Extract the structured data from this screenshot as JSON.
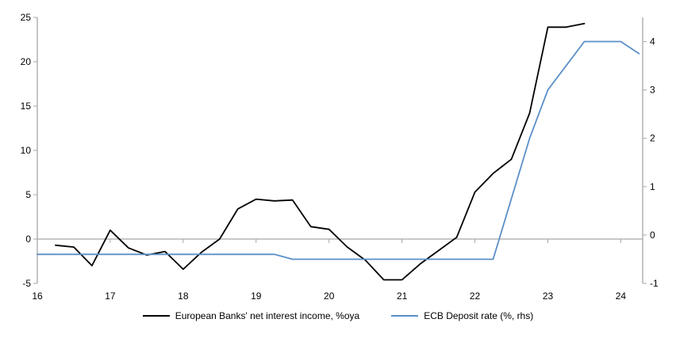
{
  "chart_data": {
    "type": "line",
    "title": "",
    "grid": "zero-line-only",
    "legend_position": "bottom-center",
    "colors": {
      "series1": "#000000",
      "series2": "#5b8fc8",
      "axis": "#a6a6a6"
    },
    "x_axis": {
      "min": 16,
      "max": 24.3,
      "ticks": [
        16,
        17,
        18,
        19,
        20,
        21,
        22,
        23,
        24
      ]
    },
    "left_axis": {
      "min": -5,
      "max": 25,
      "ticks": [
        25,
        20,
        15,
        10,
        5,
        0,
        -5
      ]
    },
    "right_axis": {
      "min": -1,
      "max": 4.5,
      "ticks": [
        4,
        3,
        2,
        1,
        0,
        -1
      ]
    },
    "series": [
      {
        "name": "European Banks' net interest income, %oya",
        "axis": "left",
        "color": "#000000",
        "x": [
          16.25,
          16.5,
          16.75,
          17.0,
          17.25,
          17.5,
          17.75,
          18.0,
          18.25,
          18.5,
          18.75,
          19.0,
          19.25,
          19.5,
          19.75,
          20.0,
          20.25,
          20.5,
          20.75,
          21.0,
          21.25,
          21.5,
          21.75,
          22.0,
          22.25,
          22.5,
          22.75,
          23.0,
          23.25,
          23.5
        ],
        "values": [
          -0.7,
          -0.9,
          -3.0,
          1.0,
          -1.0,
          -1.8,
          -1.4,
          -3.4,
          -1.5,
          0.0,
          3.4,
          4.5,
          4.3,
          4.4,
          1.4,
          1.1,
          -0.9,
          -2.4,
          -4.6,
          -4.6,
          -2.8,
          -1.3,
          0.2,
          5.3,
          7.4,
          9.0,
          14.2,
          23.9,
          23.9,
          24.3
        ]
      },
      {
        "name": "ECB Deposit rate (%, rhs)",
        "axis": "right",
        "color": "#5b8fc8",
        "x": [
          16.0,
          16.25,
          16.5,
          16.75,
          17.0,
          17.25,
          17.5,
          17.75,
          18.0,
          18.25,
          18.5,
          18.75,
          19.0,
          19.25,
          19.5,
          19.75,
          20.0,
          20.25,
          20.5,
          20.75,
          21.0,
          21.25,
          21.5,
          21.75,
          22.0,
          22.25,
          22.5,
          22.75,
          23.0,
          23.25,
          23.5,
          23.75,
          24.0,
          24.25
        ],
        "values": [
          -0.4,
          -0.4,
          -0.4,
          -0.4,
          -0.4,
          -0.4,
          -0.4,
          -0.4,
          -0.4,
          -0.4,
          -0.4,
          -0.4,
          -0.4,
          -0.4,
          -0.5,
          -0.5,
          -0.5,
          -0.5,
          -0.5,
          -0.5,
          -0.5,
          -0.5,
          -0.5,
          -0.5,
          -0.5,
          -0.5,
          0.75,
          2.0,
          3.0,
          3.5,
          4.0,
          4.0,
          4.0,
          3.75
        ]
      }
    ]
  }
}
